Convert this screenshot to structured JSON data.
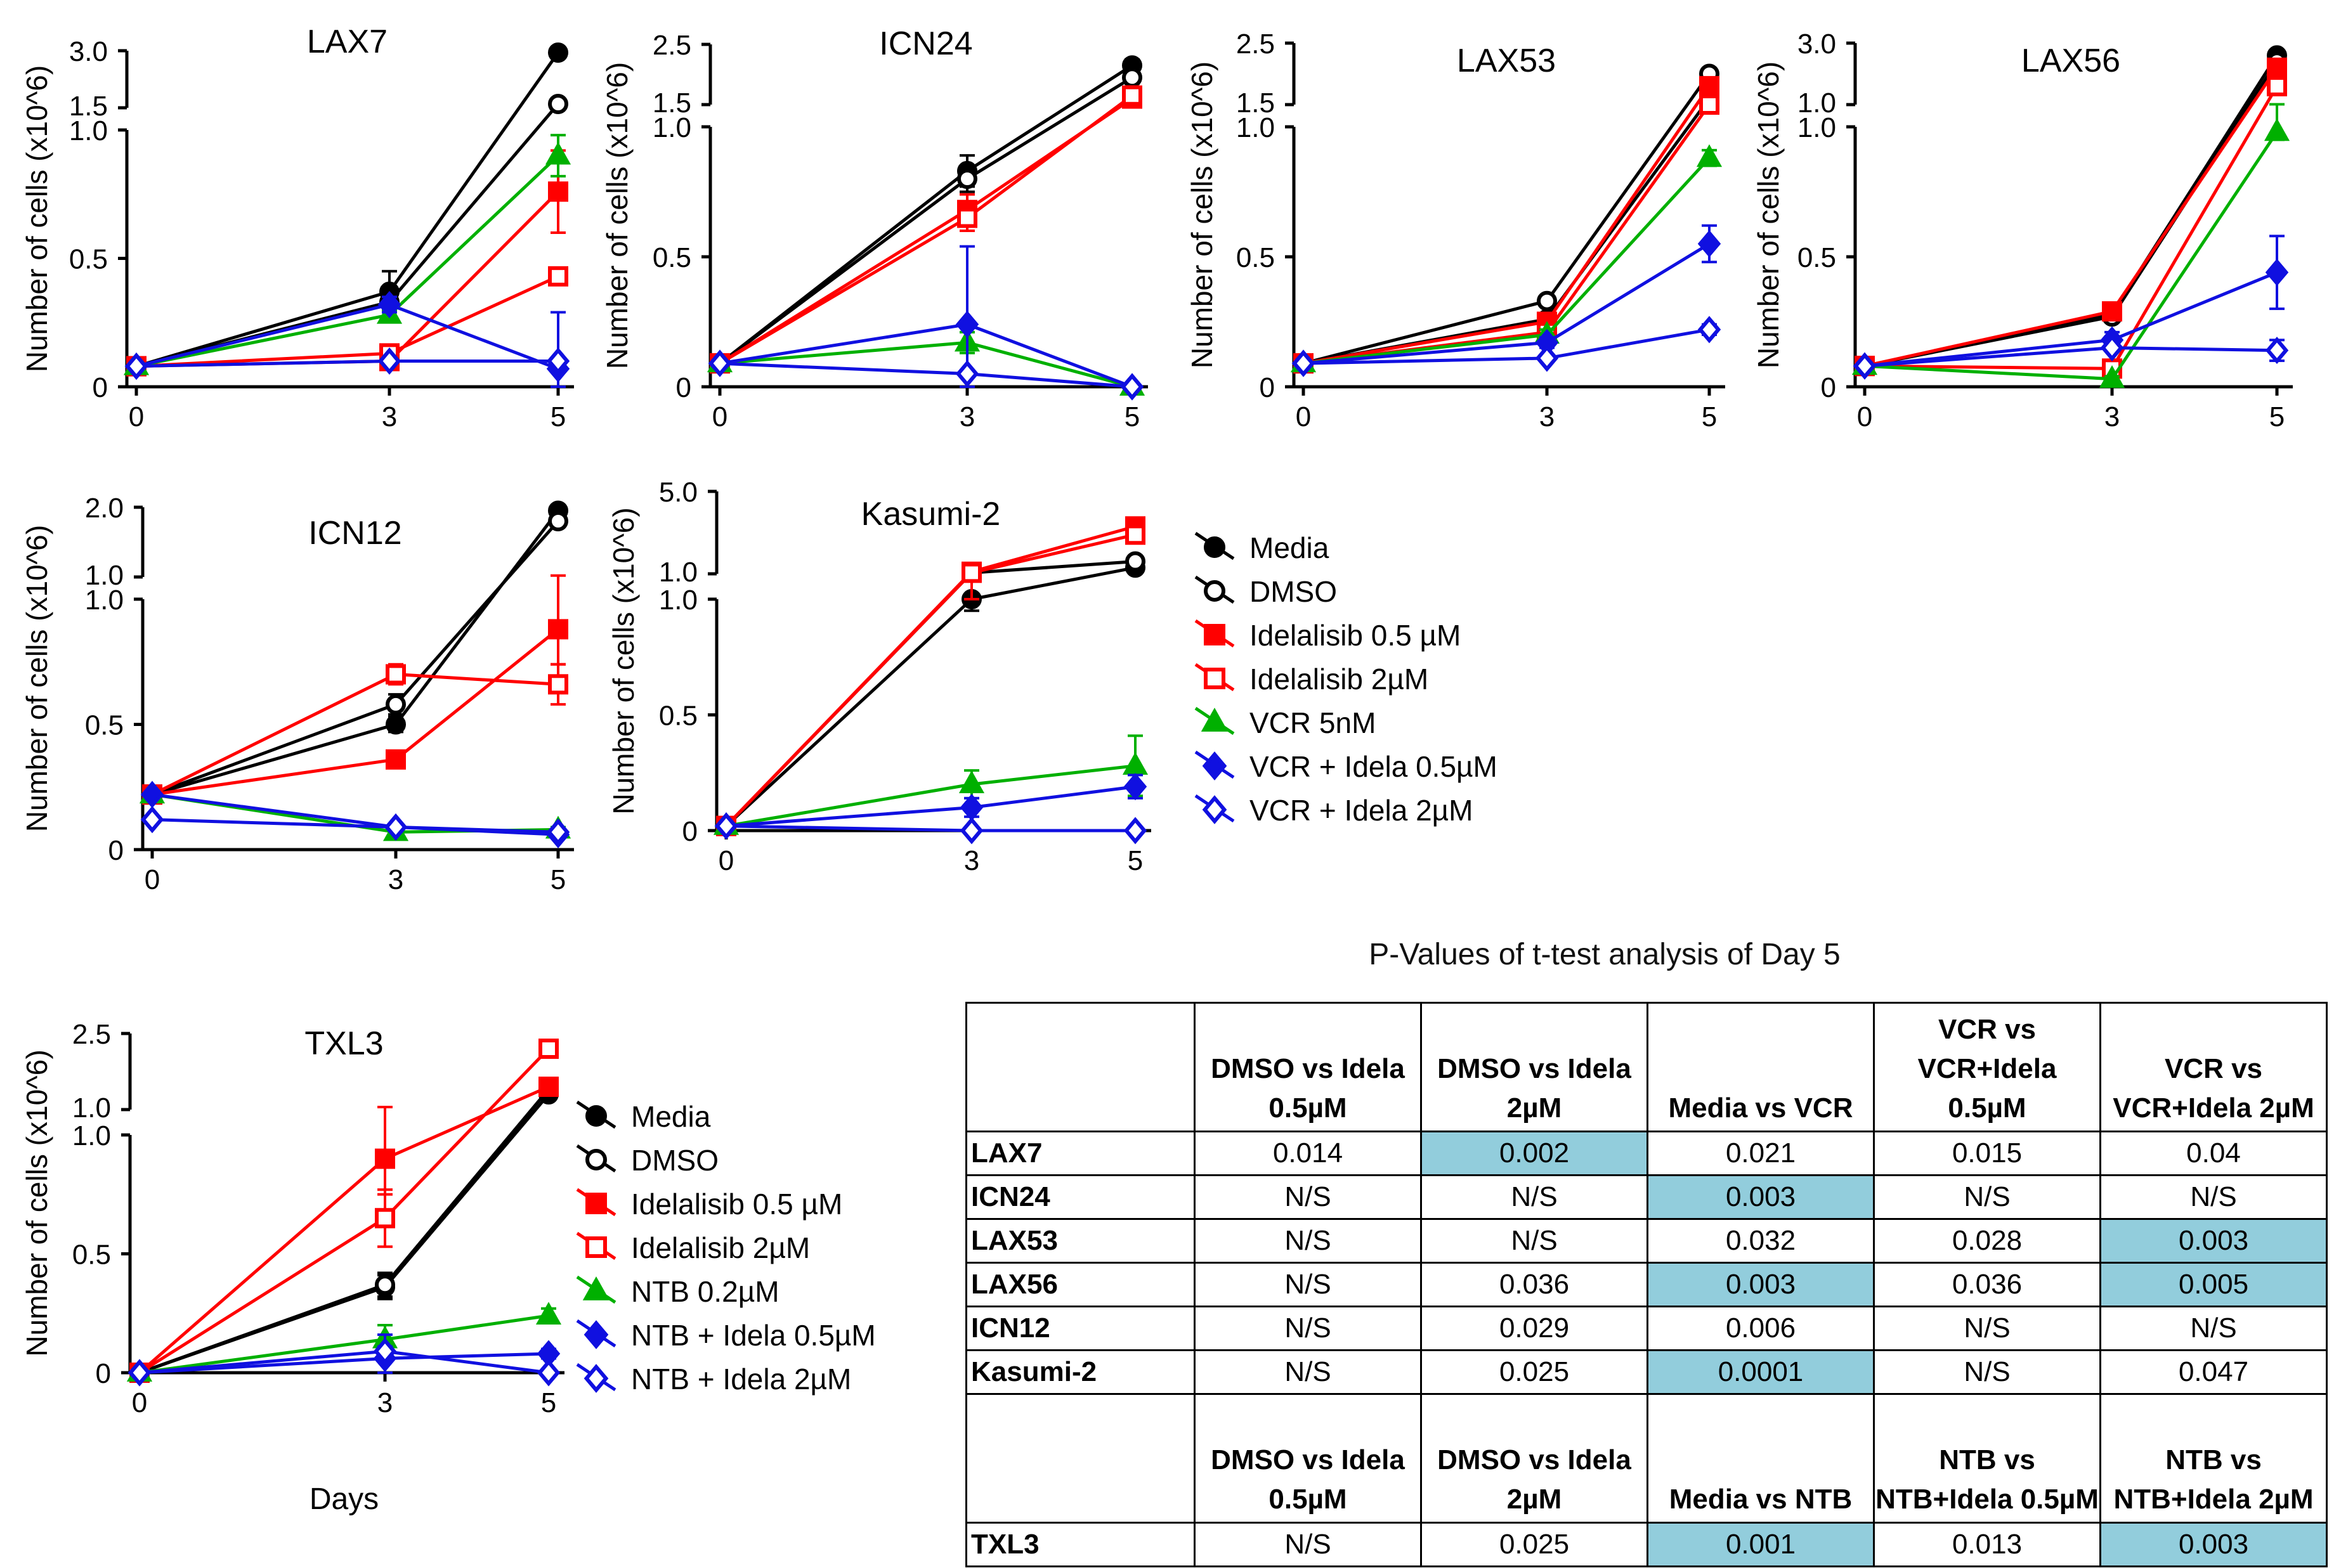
{
  "chart_data": [
    {
      "type": "line",
      "title": "LAX7",
      "ylabel": "Number of cells (x10^6)",
      "xlabel": "",
      "x": [
        0,
        3,
        5
      ],
      "x_ticks": [
        "0",
        "3",
        "5"
      ],
      "y_lower_ticks": [
        "0",
        "0.5",
        "1.0"
      ],
      "y_lower_range": [
        0,
        1.0
      ],
      "y_upper_ticks": [
        "1.5",
        "3.0"
      ],
      "y_upper_range": [
        1.5,
        3.0
      ],
      "series": [
        {
          "name": "Media",
          "values": [
            0.08,
            0.37,
            2.95
          ],
          "errors": [
            0.01,
            0.08,
            0.05
          ]
        },
        {
          "name": "DMSO",
          "values": [
            0.08,
            0.33,
            1.6
          ],
          "errors": [
            0.01,
            0.04,
            0.05
          ]
        },
        {
          "name": "Idelalisib 0.5 µM",
          "values": [
            0.08,
            0.1,
            0.76
          ],
          "errors": [
            0.01,
            0.02,
            0.16
          ]
        },
        {
          "name": "Idelalisib 2µM",
          "values": [
            0.08,
            0.13,
            0.43
          ],
          "errors": [
            0.01,
            0.03,
            0.03
          ]
        },
        {
          "name": "VCR 5nM",
          "values": [
            0.08,
            0.28,
            0.9
          ],
          "errors": [
            0.01,
            0.02,
            0.08
          ]
        },
        {
          "name": "VCR + Idela 0.5µM",
          "values": [
            0.08,
            0.32,
            0.07
          ],
          "errors": [
            0.01,
            0.03,
            0.22
          ]
        },
        {
          "name": "VCR + Idela 2µM",
          "values": [
            0.08,
            0.1,
            0.1
          ],
          "errors": [
            0.01,
            0.01,
            0.01
          ]
        }
      ]
    },
    {
      "type": "line",
      "title": "ICN24",
      "ylabel": "Number of cells (x10^6)",
      "xlabel": "",
      "x": [
        0,
        3,
        5
      ],
      "x_ticks": [
        "0",
        "3",
        "5"
      ],
      "y_lower_ticks": [
        "0",
        "0.5",
        "1.0"
      ],
      "y_lower_range": [
        0,
        1.0
      ],
      "y_upper_ticks": [
        "1.5",
        "2.5"
      ],
      "y_upper_range": [
        1.5,
        2.5
      ],
      "series": [
        {
          "name": "Media",
          "values": [
            0.09,
            0.83,
            2.15
          ],
          "errors": [
            0.01,
            0.06,
            0.1
          ]
        },
        {
          "name": "DMSO",
          "values": [
            0.09,
            0.8,
            1.95
          ],
          "errors": [
            0.01,
            0.05,
            0.1
          ]
        },
        {
          "name": "Idelalisib 0.5 µM",
          "values": [
            0.09,
            0.68,
            1.6
          ],
          "errors": [
            0.01,
            0.06,
            0.15
          ]
        },
        {
          "name": "Idelalisib 2µM",
          "values": [
            0.09,
            0.65,
            1.65
          ],
          "errors": [
            0.01,
            0.05,
            0.15
          ]
        },
        {
          "name": "VCR 5nM",
          "values": [
            0.09,
            0.17,
            0.0
          ],
          "errors": [
            0.01,
            0.04,
            0.0
          ]
        },
        {
          "name": "VCR + Idela 0.5µM",
          "values": [
            0.09,
            0.24,
            0.0
          ],
          "errors": [
            0.01,
            0.3,
            0.0
          ]
        },
        {
          "name": "VCR + Idela 2µM",
          "values": [
            0.09,
            0.05,
            0.0
          ],
          "errors": [
            0.01,
            0.01,
            0.0
          ]
        }
      ]
    },
    {
      "type": "line",
      "title": "LAX53",
      "ylabel": "Number of cells (x10^6)",
      "xlabel": "",
      "x": [
        0,
        3,
        5
      ],
      "x_ticks": [
        "0",
        "3",
        "5"
      ],
      "y_lower_ticks": [
        "0",
        "0.5",
        "1.0"
      ],
      "y_lower_range": [
        0,
        1.0
      ],
      "y_upper_ticks": [
        "1.5",
        "2.5"
      ],
      "y_upper_range": [
        1.5,
        2.5
      ],
      "series": [
        {
          "name": "Media",
          "values": [
            0.09,
            0.26,
            1.6
          ],
          "errors": [
            0.01,
            0.02,
            0.05
          ]
        },
        {
          "name": "DMSO",
          "values": [
            0.09,
            0.33,
            2.0
          ],
          "errors": [
            0.01,
            0.02,
            0.05
          ]
        },
        {
          "name": "Idelalisib 0.5 µM",
          "values": [
            0.09,
            0.25,
            1.8
          ],
          "errors": [
            0.01,
            0.02,
            0.1
          ]
        },
        {
          "name": "Idelalisib 2µM",
          "values": [
            0.09,
            0.21,
            1.5
          ],
          "errors": [
            0.01,
            0.02,
            0.05
          ]
        },
        {
          "name": "VCR 5nM",
          "values": [
            0.09,
            0.2,
            0.88
          ],
          "errors": [
            0.01,
            0.02,
            0.03
          ]
        },
        {
          "name": "VCR + Idela 0.5µM",
          "values": [
            0.09,
            0.17,
            0.55
          ],
          "errors": [
            0.01,
            0.02,
            0.07
          ]
        },
        {
          "name": "VCR + Idela 2µM",
          "values": [
            0.09,
            0.11,
            0.22
          ],
          "errors": [
            0.01,
            0.01,
            0.02
          ]
        }
      ]
    },
    {
      "type": "line",
      "title": "LAX56",
      "ylabel": "Number of cells (x10^6)",
      "xlabel": "",
      "x": [
        0,
        3,
        5
      ],
      "x_ticks": [
        "0",
        "3",
        "5"
      ],
      "y_lower_ticks": [
        "0",
        "0.5",
        "1.0"
      ],
      "y_lower_range": [
        0,
        1.0
      ],
      "y_upper_ticks": [
        "1.0",
        "3.0"
      ],
      "y_upper_range": [
        1.0,
        3.0
      ],
      "series": [
        {
          "name": "Media",
          "values": [
            0.08,
            0.28,
            2.6
          ],
          "errors": [
            0.01,
            0.02,
            0.1
          ]
        },
        {
          "name": "DMSO",
          "values": [
            0.08,
            0.27,
            2.4
          ],
          "errors": [
            0.01,
            0.02,
            0.1
          ]
        },
        {
          "name": "Idelalisib 0.5 µM",
          "values": [
            0.08,
            0.29,
            2.2
          ],
          "errors": [
            0.01,
            0.02,
            0.1
          ]
        },
        {
          "name": "Idelalisib 2µM",
          "values": [
            0.08,
            0.07,
            1.6
          ],
          "errors": [
            0.01,
            0.01,
            0.1
          ]
        },
        {
          "name": "VCR 5nM",
          "values": [
            0.08,
            0.03,
            0.98
          ],
          "errors": [
            0.01,
            0.01,
            0.03
          ]
        },
        {
          "name": "VCR + Idela 0.5µM",
          "values": [
            0.08,
            0.18,
            0.44
          ],
          "errors": [
            0.01,
            0.03,
            0.14
          ]
        },
        {
          "name": "VCR + Idela 2µM",
          "values": [
            0.08,
            0.15,
            0.14
          ],
          "errors": [
            0.01,
            0.01,
            0.04
          ]
        }
      ]
    },
    {
      "type": "line",
      "title": "ICN12",
      "ylabel": "Number of cells (x10^6)",
      "xlabel": "",
      "x": [
        0,
        3,
        5
      ],
      "x_ticks": [
        "0",
        "3",
        "5"
      ],
      "y_lower_ticks": [
        "0",
        "0.5",
        "1.0"
      ],
      "y_lower_range": [
        0,
        1.0
      ],
      "y_upper_ticks": [
        "1.0",
        "2.0"
      ],
      "y_upper_range": [
        1.0,
        2.0
      ],
      "series": [
        {
          "name": "Media",
          "values": [
            0.22,
            0.5,
            1.95
          ],
          "errors": [
            0.01,
            0.03,
            0.05
          ]
        },
        {
          "name": "DMSO",
          "values": [
            0.22,
            0.58,
            1.8
          ],
          "errors": [
            0.01,
            0.04,
            0.05
          ]
        },
        {
          "name": "Idelalisib 0.5 µM",
          "values": [
            0.22,
            0.36,
            0.88
          ],
          "errors": [
            0.01,
            0.02,
            0.14
          ]
        },
        {
          "name": "Idelalisib 2µM",
          "values": [
            0.22,
            0.7,
            0.66
          ],
          "errors": [
            0.01,
            0.04,
            0.08
          ]
        },
        {
          "name": "VCR 5nM",
          "values": [
            0.22,
            0.07,
            0.08
          ],
          "errors": [
            0.01,
            0.01,
            0.01
          ]
        },
        {
          "name": "VCR + Idela 0.5µM",
          "values": [
            0.22,
            0.09,
            0.06
          ],
          "errors": [
            0.01,
            0.01,
            0.01
          ]
        },
        {
          "name": "VCR + Idela 2µM",
          "values": [
            0.12,
            0.09,
            0.07
          ],
          "errors": [
            0.01,
            0.01,
            0.01
          ]
        }
      ]
    },
    {
      "type": "line",
      "title": "Kasumi-2",
      "ylabel": "Number of cells (x10^6)",
      "xlabel": "",
      "x": [
        0,
        3,
        5
      ],
      "x_ticks": [
        "0",
        "3",
        "5"
      ],
      "y_lower_ticks": [
        "0",
        "0.5",
        "1.0"
      ],
      "y_lower_range": [
        0,
        1.0
      ],
      "y_upper_ticks": [
        "1.0",
        "5.0"
      ],
      "y_upper_range": [
        1.0,
        5.0
      ],
      "series": [
        {
          "name": "Media",
          "values": [
            0.02,
            1.0,
            1.3
          ],
          "errors": [
            0.01,
            0.05,
            0.1
          ]
        },
        {
          "name": "DMSO",
          "values": [
            0.02,
            1.05,
            1.6
          ],
          "errors": [
            0.01,
            0.05,
            0.1
          ]
        },
        {
          "name": "Idelalisib 0.5 µM",
          "values": [
            0.02,
            1.1,
            3.3
          ],
          "errors": [
            0.01,
            0.05,
            0.3
          ]
        },
        {
          "name": "Idelalisib 2µM",
          "values": [
            0.02,
            1.05,
            2.9
          ],
          "errors": [
            0.01,
            0.05,
            0.3
          ]
        },
        {
          "name": "VCR 5nM",
          "values": [
            0.02,
            0.2,
            0.28
          ],
          "errors": [
            0.01,
            0.06,
            0.13
          ]
        },
        {
          "name": "VCR + Idela 0.5µM",
          "values": [
            0.02,
            0.1,
            0.19
          ],
          "errors": [
            0.01,
            0.04,
            0.05
          ]
        },
        {
          "name": "VCR + Idela 2µM",
          "values": [
            0.02,
            0.0,
            0.0
          ],
          "errors": [
            0.01,
            0.01,
            0.01
          ]
        }
      ]
    },
    {
      "type": "line",
      "title": "TXL3",
      "ylabel": "Number of cells (x10^6)",
      "xlabel": "Days",
      "x": [
        0,
        3,
        5
      ],
      "x_ticks": [
        "0",
        "3",
        "5"
      ],
      "y_lower_ticks": [
        "0",
        "0.5",
        "1.0"
      ],
      "y_lower_range": [
        0,
        1.0
      ],
      "y_upper_ticks": [
        "1.0",
        "2.5"
      ],
      "y_upper_range": [
        1.0,
        2.5
      ],
      "series": [
        {
          "name": "Media",
          "values": [
            0.0,
            0.36,
            1.3
          ],
          "errors": [
            0.01,
            0.05,
            0.05
          ]
        },
        {
          "name": "DMSO",
          "values": [
            0.0,
            0.37,
            1.4
          ],
          "errors": [
            0.01,
            0.05,
            0.05
          ]
        },
        {
          "name": "Idelalisib 0.5 µM",
          "values": [
            0.0,
            0.9,
            1.45
          ],
          "errors": [
            0.02,
            0.15,
            0.05
          ]
        },
        {
          "name": "Idelalisib 2µM",
          "values": [
            0.0,
            0.65,
            2.2
          ],
          "errors": [
            0.02,
            0.12,
            0.05
          ]
        },
        {
          "name": "NTB 0.2µM",
          "values": [
            0.0,
            0.14,
            0.24
          ],
          "errors": [
            0.01,
            0.06,
            0.03
          ]
        },
        {
          "name": "NTB + Idela 0.5µM",
          "values": [
            0.0,
            0.06,
            0.08
          ],
          "errors": [
            0.01,
            0.1,
            0.02
          ]
        },
        {
          "name": "NTB + Idela 2µM",
          "values": [
            0.0,
            0.09,
            0.0
          ],
          "errors": [
            0.01,
            0.02,
            0.01
          ]
        }
      ]
    }
  ],
  "legend_vcr": [
    "Media",
    "DMSO",
    "Idelalisib  0.5 µM",
    "Idelalisib  2µM",
    "VCR 5nM",
    "VCR + Idela 0.5µM",
    "VCR + Idela 2µM"
  ],
  "legend_ntb": [
    "Media",
    "DMSO",
    "Idelalisib  0.5 µM",
    "Idelalisib  2µM",
    "NTB 0.2µM",
    "NTB + Idela 0.5µM",
    "NTB + Idela 2µM"
  ],
  "colors": {
    "media": "#000000",
    "idela": "#ff0000",
    "vcr": "#00b000",
    "combo": "#1010e0",
    "highlight": "#92cddc"
  },
  "pvalues": {
    "title": "P-Values of t-test analysis of Day 5",
    "headers_vcr": [
      "",
      "DMSO vs Idela 0.5µM",
      "DMSO vs Idela 2µM",
      "Media vs VCR",
      "VCR vs VCR+Idela 0.5µM",
      "VCR vs VCR+Idela 2µM"
    ],
    "rows_vcr": [
      [
        "LAX7",
        "0.014",
        "0.002",
        "0.021",
        "0.015",
        "0.04"
      ],
      [
        "ICN24",
        "N/S",
        "N/S",
        "0.003",
        "N/S",
        "N/S"
      ],
      [
        "LAX53",
        "N/S",
        "N/S",
        "0.032",
        "0.028",
        "0.003"
      ],
      [
        "LAX56",
        "N/S",
        "0.036",
        "0.003",
        "0.036",
        "0.005"
      ],
      [
        "ICN12",
        "N/S",
        "0.029",
        "0.006",
        "N/S",
        "N/S"
      ],
      [
        "Kasumi-2",
        "N/S",
        "0.025",
        "0.0001",
        "N/S",
        "0.047"
      ]
    ],
    "highlights_vcr": [
      [
        0,
        2
      ],
      [
        1,
        3
      ],
      [
        2,
        5
      ],
      [
        3,
        3
      ],
      [
        3,
        5
      ],
      [
        5,
        3
      ]
    ],
    "headers_ntb": [
      "",
      "DMSO vs Idela 0.5µM",
      "DMSO vs Idela 2µM",
      "Media vs NTB",
      "NTB vs NTB+Idela 0.5µM",
      "NTB vs NTB+Idela 2µM"
    ],
    "rows_ntb": [
      [
        "TXL3",
        "N/S",
        "0.025",
        "0.001",
        "0.013",
        "0.003"
      ]
    ],
    "highlights_ntb": [
      [
        0,
        3
      ],
      [
        0,
        5
      ]
    ]
  }
}
